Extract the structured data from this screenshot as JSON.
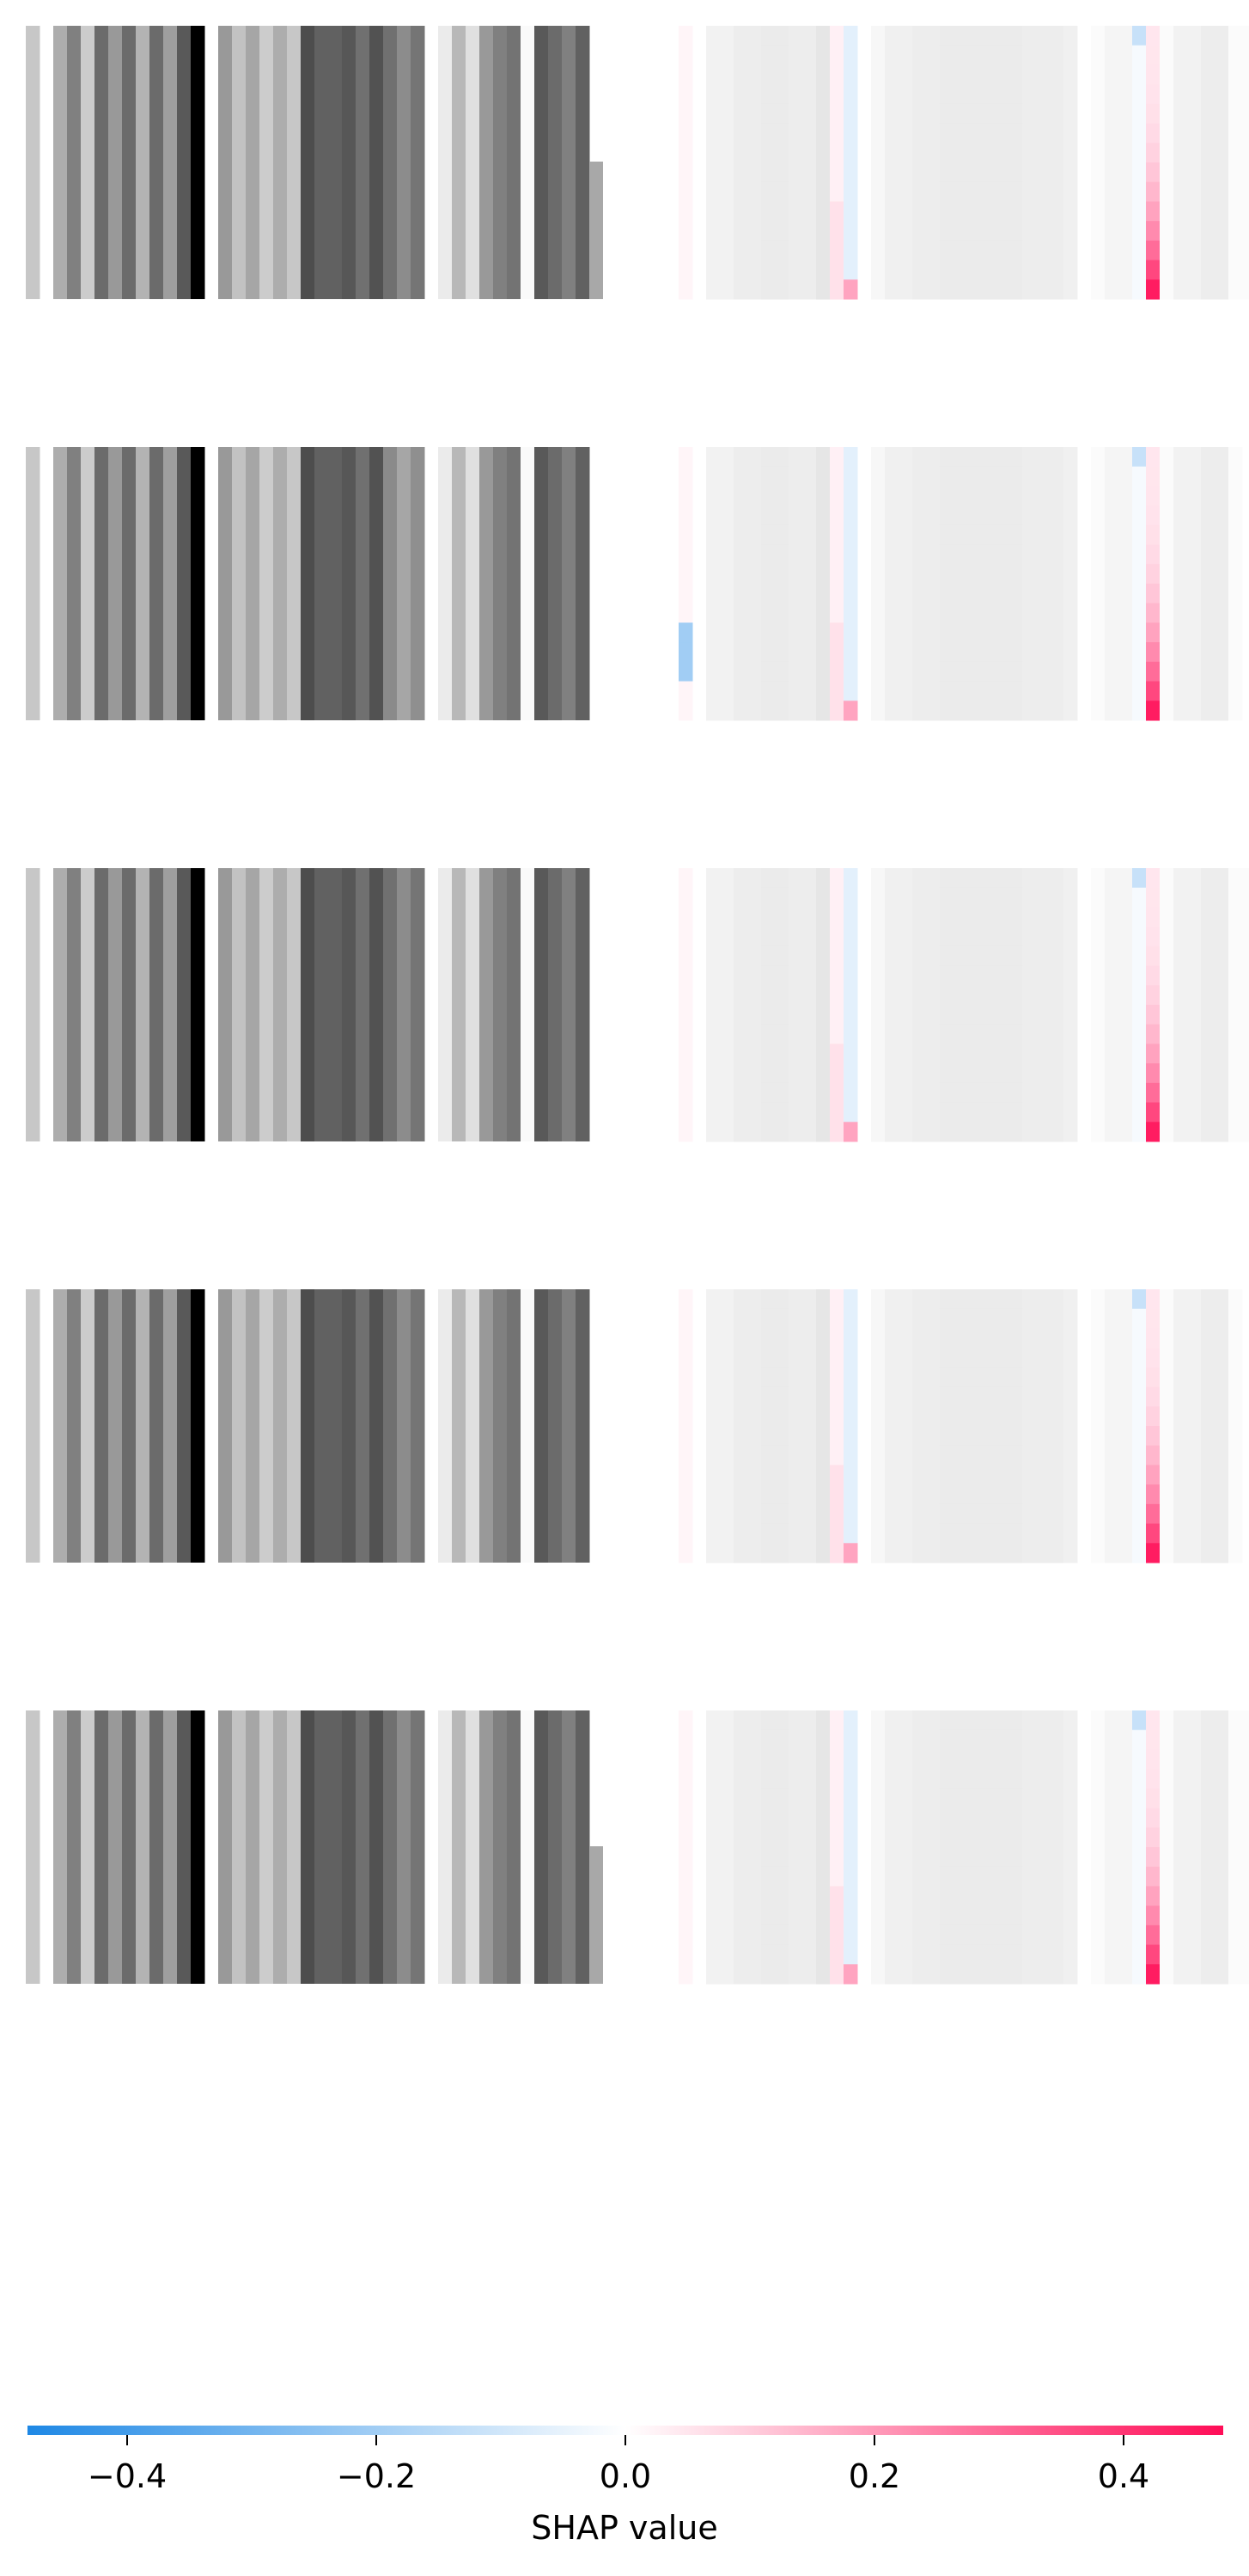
{
  "chart_data": {
    "type": "heatmap",
    "title": "",
    "description_of_layout": "",
    "rows": 5,
    "panels_per_row": [
      "input",
      "shap"
    ],
    "colorbar": {
      "label": "SHAP value",
      "ticks": [
        -0.4,
        -0.2,
        0.0,
        0.2,
        0.4
      ],
      "tick_labels": [
        "−0.4",
        "−0.2",
        "0.0",
        "0.2",
        "0.4"
      ],
      "vmin": -0.48,
      "vmax": 0.48,
      "cmap_low": "#1e88e5",
      "cmap_mid": "#ffffff",
      "cmap_high": "#ff0d57"
    },
    "input_columns": {
      "n_columns": 48,
      "gray_levels": [
        0.78,
        1.0,
        0.68,
        0.5,
        0.8,
        0.42,
        0.6,
        0.42,
        0.7,
        0.42,
        0.62,
        0.35,
        0.0,
        0.95,
        0.6,
        0.76,
        0.65,
        0.8,
        0.68,
        0.78,
        0.3,
        0.38,
        0.38,
        0.34,
        0.44,
        0.32,
        0.44,
        0.55,
        0.46,
        0.55,
        0.92,
        0.72,
        0.88,
        0.6,
        0.5,
        0.45,
        0.98,
        0.35,
        0.42,
        0.5,
        0.38,
        0.98,
        0.98,
        0.98,
        0.98,
        0.98,
        0.98,
        0.98
      ],
      "extent_columns": [
        41,
        41,
        41,
        41,
        41
      ]
    },
    "shap_values": {
      "n_columns": 48,
      "n_rows_per_panel": 14,
      "column_base": [
        0.02,
        -0.01,
        0.0,
        0.0,
        0.0,
        0.0,
        0.0,
        0.0,
        0.0,
        0.0,
        0.0,
        0.03,
        -0.06,
        0.0,
        0.0,
        0.01,
        0.0,
        0.0,
        0.0,
        0.0,
        0.0,
        0.0,
        0.0,
        0.0,
        0.0,
        0.0,
        0.0,
        0.0,
        0.0,
        0.0,
        0.0,
        0.0,
        0.0,
        -0.02,
        0.14,
        0.0,
        0.0,
        0.0,
        0.0,
        0.0,
        0.0,
        0.0,
        0.0,
        0.0,
        0.0,
        0.0,
        0.0,
        0.0
      ],
      "column_gray": [
        0.985,
        0.97,
        0.95,
        0.95,
        0.93,
        0.93,
        0.92,
        0.92,
        0.93,
        0.93,
        0.9,
        0.9,
        0.88,
        0.97,
        0.97,
        0.94,
        0.94,
        0.93,
        0.93,
        0.92,
        0.92,
        0.92,
        0.92,
        0.92,
        0.92,
        0.93,
        0.93,
        0.93,
        0.94,
        0.94,
        0.985,
        0.96,
        0.96,
        0.96,
        0.9,
        0.985,
        0.95,
        0.95,
        0.93,
        0.93,
        0.985,
        0.985,
        0.985,
        0.985,
        0.985,
        0.985,
        0.985,
        0.985
      ],
      "extent_columns": [
        43,
        41,
        42,
        41,
        43
      ]
    }
  },
  "colorbar_label": "SHAP value",
  "tick_labels": [
    "−0.4",
    "−0.2",
    "0.0",
    "0.2",
    "0.4"
  ]
}
